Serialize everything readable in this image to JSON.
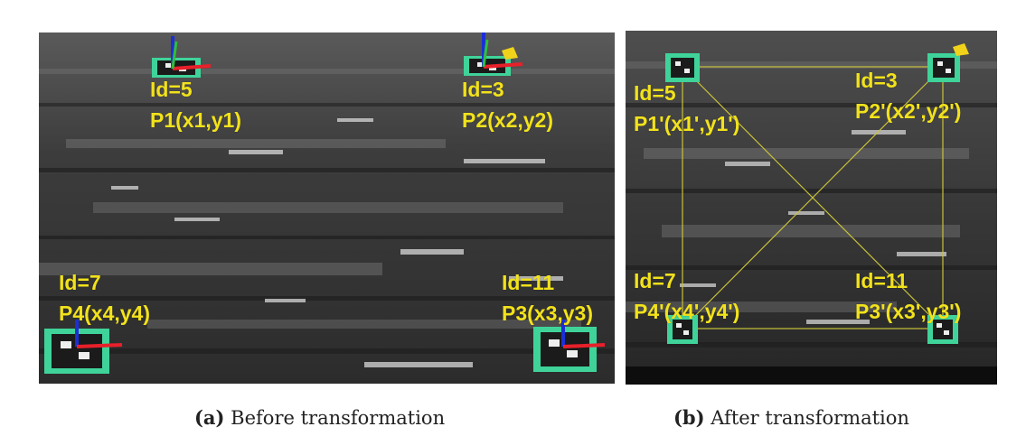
{
  "panel_a": {
    "caption_tag": "(a)",
    "caption_text": "Before transformation",
    "markers": [
      {
        "id_label": "Id=5",
        "point_label": "P1(x1,y1)"
      },
      {
        "id_label": "Id=3",
        "point_label": "P2(x2,y2)"
      },
      {
        "id_label": "Id=7",
        "point_label": "P4(x4,y4)"
      },
      {
        "id_label": "Id=11",
        "point_label": "P3(x3,y3)"
      }
    ]
  },
  "panel_b": {
    "caption_tag": "(b)",
    "caption_text": "After transformation",
    "markers": [
      {
        "id_label": "Id=5",
        "point_label": "P1'(x1',y1')"
      },
      {
        "id_label": "Id=3",
        "point_label": "P2'(x2',y2')"
      },
      {
        "id_label": "Id=7",
        "point_label": "P4'(x4',y4')"
      },
      {
        "id_label": "Id=11",
        "point_label": "P3'(x3',y3')"
      }
    ]
  },
  "colors": {
    "label_text": "#f2e21b",
    "marker_border": "#3fd39a",
    "axis_x": "#e8202a",
    "axis_y": "#1c2fd6",
    "axis_z": "#2fbf3a",
    "guide_lines": "#c9c23a"
  }
}
